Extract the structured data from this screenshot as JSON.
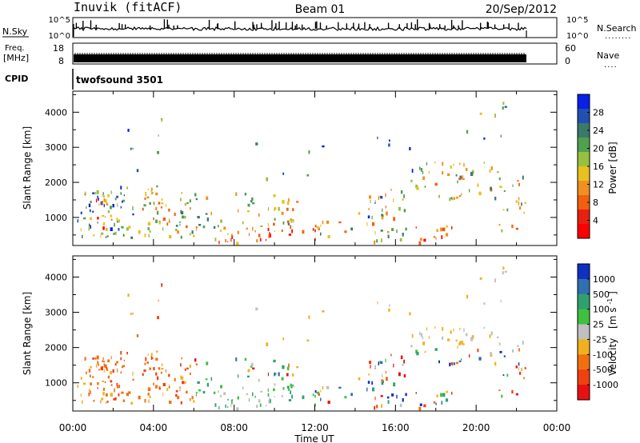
{
  "header": {
    "station": "Inuvik (fitACF)",
    "beam": "Beam 01",
    "date": "20/Sep/2012"
  },
  "nsky_panel": {
    "left_label": "N.Sky",
    "left_ticks": [
      "10^5",
      "10^0"
    ],
    "right_ticks": [
      "10^5",
      "10^0"
    ],
    "right_label": "N.Search",
    "right_marker": "........"
  },
  "freq_panel": {
    "left_label_top": "Freq.",
    "left_label_bottom": "[MHz]",
    "left_ticks": [
      "18",
      "8"
    ],
    "right_ticks": [
      "60",
      "0"
    ],
    "right_label": "Nave",
    "right_marker": "...."
  },
  "cpid_panel": {
    "label": "CPID",
    "value": "twofsound 3501"
  },
  "chart_data": [
    {
      "type": "heatmap",
      "name": "power",
      "ylabel": "Slant Range [km]",
      "ylim": [
        200,
        4600
      ],
      "yticks": [
        1000,
        2000,
        3000,
        4000
      ],
      "xlim": [
        0,
        24
      ],
      "colorbar": {
        "label": "Power [dB]",
        "ticks": [
          "4",
          "8",
          "12",
          "16",
          "20",
          "24",
          "28"
        ],
        "colors": [
          "#0a1fe8",
          "#2050b0",
          "#3a7a6a",
          "#50a050",
          "#98c040",
          "#e8c020",
          "#f09020",
          "#f06010",
          "#e82010",
          "#ff0000"
        ]
      }
    },
    {
      "type": "heatmap",
      "name": "velocity",
      "ylabel": "Slant Range [km]",
      "ylim": [
        200,
        4600
      ],
      "yticks": [
        1000,
        2000,
        3000,
        4000
      ],
      "xlim": [
        0,
        24
      ],
      "xlabel": "Time UT",
      "xticks": [
        "00:00",
        "04:00",
        "08:00",
        "12:00",
        "16:00",
        "20:00",
        "00:00"
      ],
      "colorbar": {
        "label": "Velocity",
        "unit": "[m s",
        "unit_exp": "-1",
        "unit_close": "]",
        "ticks": [
          "1000",
          "500",
          "100",
          "25",
          "-25",
          "-100",
          "-500",
          "-1000"
        ],
        "colors": [
          "#1030c0",
          "#2e70b0",
          "#30a070",
          "#40c040",
          "#c0c0c0",
          "#f0b020",
          "#f07010",
          "#f04010",
          "#e81010"
        ]
      }
    }
  ]
}
